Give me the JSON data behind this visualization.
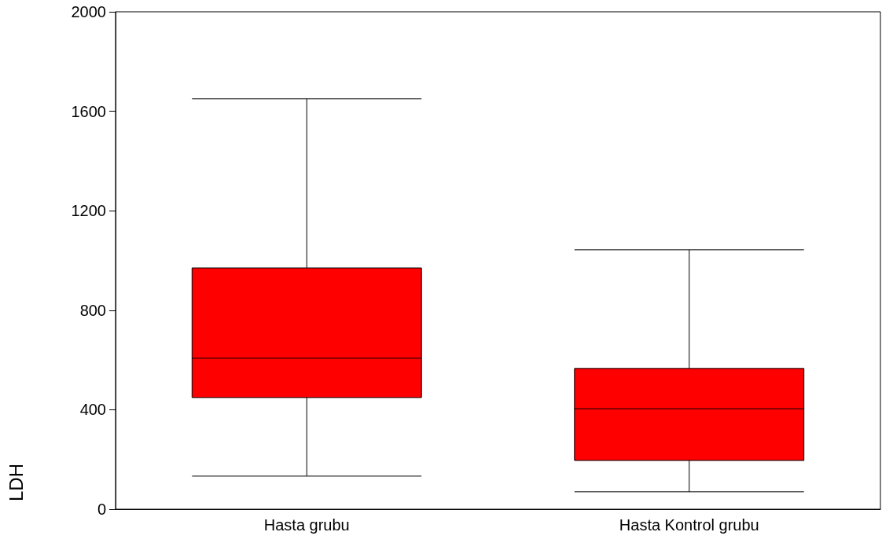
{
  "chart_data": {
    "type": "box",
    "ylabel": "LDH",
    "categories": [
      "Hasta grubu",
      "Hasta Kontrol grubu"
    ],
    "series": [
      {
        "color": "#ff0000",
        "boxes": [
          {
            "low": 133,
            "q1": 449,
            "median": 607,
            "q3": 970,
            "high": 1650
          },
          {
            "low": 70,
            "q1": 196,
            "median": 404,
            "q3": 566,
            "high": 1043
          }
        ]
      }
    ],
    "ylim": [
      0,
      2000
    ],
    "yticks": [
      0,
      400,
      800,
      1200,
      1600,
      2000
    ],
    "grid": false
  }
}
